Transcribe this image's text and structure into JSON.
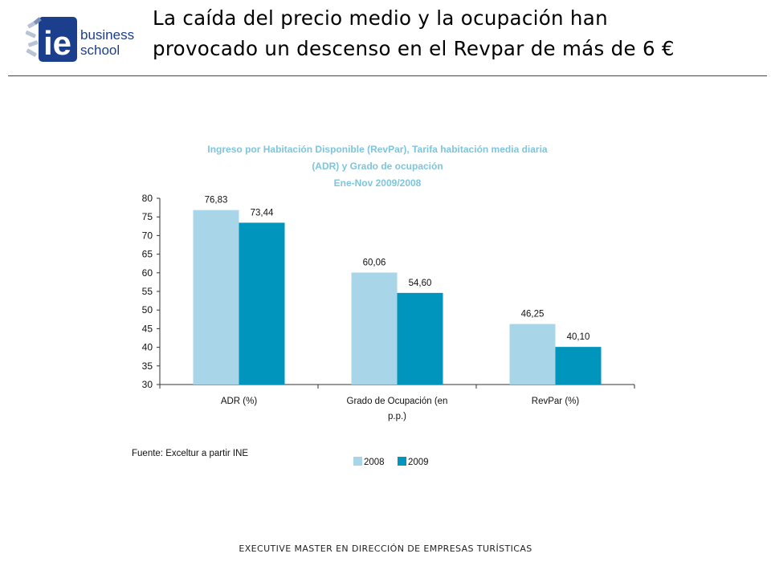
{
  "slide": {
    "title_line1": "La caída del precio medio y la ocupación han",
    "title_line2": "provocado un descenso en el Revpar de más de 6 €",
    "footer": "EXECUTIVE MASTER EN DIRECCIÓN DE EMPRESAS TURÍSTICAS"
  },
  "logo": {
    "mark": "ie",
    "word1": "business",
    "word2": "school",
    "color": "#1b3f8c"
  },
  "chart_data": {
    "type": "bar",
    "title_lines": [
      "Ingreso por Habitación Disponible (RevPar), Tarifa habitación media diaria",
      "(ADR) y Grado de ocupación",
      "Ene-Nov 2009/2008"
    ],
    "title_color": "#7ec5dc",
    "categories": [
      [
        "ADR (%)"
      ],
      [
        "Grado de Ocupación (en",
        "p.p.)"
      ],
      [
        "RevPar (%)"
      ]
    ],
    "series": [
      {
        "name": "2008",
        "color": "#a9d5e8",
        "values": [
          76.83,
          60.06,
          46.25
        ],
        "labels": [
          "76,83",
          "60,06",
          "46,25"
        ]
      },
      {
        "name": "2009",
        "color": "#0095bd",
        "values": [
          73.44,
          54.6,
          40.1
        ],
        "labels": [
          "73,44",
          "54,60",
          "40,10"
        ]
      }
    ],
    "ylim": [
      30,
      80
    ],
    "yticks": [
      "80",
      "75",
      "70",
      "65",
      "60",
      "55",
      "50",
      "45",
      "40",
      "35",
      "30"
    ],
    "source": "Fuente: Exceltur a partir INE",
    "legend_position": "bottom-center"
  }
}
